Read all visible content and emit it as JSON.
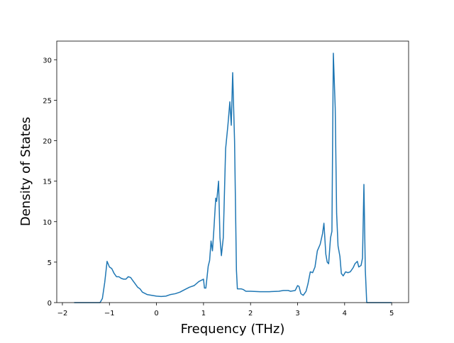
{
  "chart_data": {
    "type": "line",
    "x_label": "Frequency (THz)",
    "y_label": "Density of States",
    "color": "#1f77b4",
    "x": [
      -1.75,
      -1.2,
      -1.15,
      -1.1,
      -1.05,
      -1.0,
      -0.95,
      -0.9,
      -0.85,
      -0.8,
      -0.75,
      -0.7,
      -0.65,
      -0.6,
      -0.55,
      -0.5,
      -0.45,
      -0.4,
      -0.35,
      -0.3,
      -0.2,
      -0.1,
      0,
      0.1,
      0.2,
      0.3,
      0.4,
      0.5,
      0.6,
      0.7,
      0.8,
      0.9,
      1.0,
      1.02,
      1.05,
      1.1,
      1.13,
      1.16,
      1.19,
      1.22,
      1.26,
      1.28,
      1.32,
      1.35,
      1.38,
      1.42,
      1.47,
      1.52,
      1.56,
      1.59,
      1.62,
      1.66,
      1.7,
      1.72,
      1.8,
      1.85,
      1.9,
      2.0,
      2.2,
      2.4,
      2.6,
      2.7,
      2.8,
      2.85,
      2.95,
      3.0,
      3.03,
      3.07,
      3.12,
      3.18,
      3.22,
      3.27,
      3.32,
      3.37,
      3.42,
      3.48,
      3.53,
      3.56,
      3.6,
      3.63,
      3.66,
      3.7,
      3.73,
      3.76,
      3.8,
      3.83,
      3.86,
      3.9,
      3.93,
      3.97,
      4.02,
      4.07,
      4.12,
      4.18,
      4.22,
      4.27,
      4.3,
      4.35,
      4.38,
      4.41,
      4.44,
      4.47,
      5.0
    ],
    "values": [
      0,
      0,
      0.5,
      2.5,
      5.1,
      4.4,
      4.2,
      3.6,
      3.2,
      3.2,
      3.0,
      2.9,
      2.9,
      3.2,
      3.1,
      2.7,
      2.3,
      1.9,
      1.7,
      1.3,
      1.0,
      0.9,
      0.8,
      0.75,
      0.8,
      1.0,
      1.1,
      1.3,
      1.6,
      1.9,
      2.1,
      2.6,
      2.9,
      1.8,
      1.8,
      4.5,
      5.2,
      7.6,
      6.4,
      9,
      12.9,
      12.5,
      15,
      8,
      5.8,
      8,
      19,
      22,
      24.8,
      21.9,
      28.4,
      20,
      4,
      1.7,
      1.7,
      1.6,
      1.4,
      1.4,
      1.35,
      1.35,
      1.4,
      1.5,
      1.5,
      1.4,
      1.5,
      2.1,
      2.0,
      1.1,
      0.9,
      1.4,
      2.3,
      3.8,
      3.7,
      4.4,
      6.4,
      7.2,
      8.5,
      9.8,
      6,
      5,
      4.8,
      8,
      8.8,
      30.8,
      24,
      11,
      7,
      5.7,
      3.6,
      3.3,
      3.8,
      3.7,
      3.8,
      4.3,
      4.8,
      5.1,
      4.4,
      4.6,
      5.5,
      14.6,
      4,
      0,
      0
    ],
    "xlim": [
      -2.12,
      5.36
    ],
    "ylim": [
      0,
      32.3
    ],
    "xticks": [
      {
        "value": -2,
        "label": "−2"
      },
      {
        "value": -1,
        "label": "−1"
      },
      0,
      1,
      2,
      3,
      4,
      5
    ],
    "yticks": [
      0,
      5,
      10,
      15,
      20,
      25,
      30
    ]
  }
}
